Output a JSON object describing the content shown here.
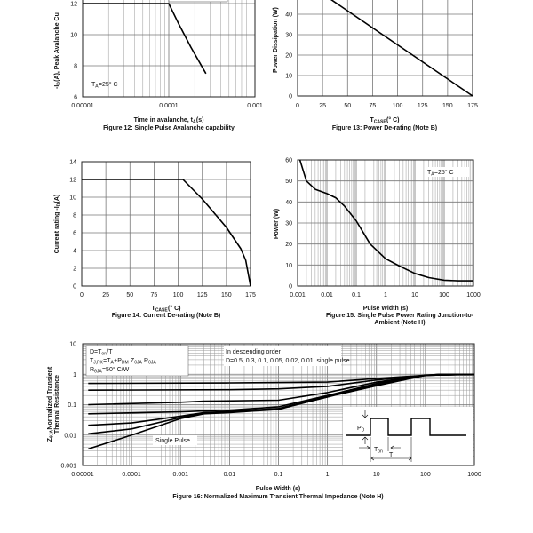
{
  "chart_data": [
    {
      "id": "fig12",
      "type": "line",
      "title": "Figure 12: Single Pulse Avalanche capability",
      "xlabel": [
        {
          "t": "Time in avalanche, t"
        },
        {
          "t": "A",
          "sub": true
        },
        {
          "t": " (s)"
        }
      ],
      "ylabel": [
        {
          "t": "-I"
        },
        {
          "t": "D",
          "sub": true
        },
        {
          "t": "(A), Peak Avalanche Cu"
        }
      ],
      "xscale": "log",
      "xlim": [
        1e-05,
        0.001
      ],
      "ylim": [
        6,
        14
      ],
      "xticks": [
        1e-05,
        0.0001,
        0.001
      ],
      "xticklabels": [
        "0.00001",
        "0.0001",
        "0.001"
      ],
      "yticks": [
        6,
        8,
        10,
        12
      ],
      "yticklabels": [
        "6",
        "8",
        "10",
        "12"
      ],
      "grid": true,
      "annotations": [
        [
          {
            "t": "T"
          },
          {
            "t": "A",
            "sub": true
          },
          {
            "t": "=25° C"
          }
        ]
      ],
      "series": [
        {
          "x": [
            1e-05,
            0.0001,
            0.00013,
            0.00018,
            0.00027
          ],
          "y": [
            12,
            12,
            10.7,
            9.2,
            7.5
          ]
        }
      ]
    },
    {
      "id": "fig13",
      "type": "line",
      "title": "Figure 13: Power De-rating (Note B)",
      "xlabel": [
        {
          "t": "T"
        },
        {
          "t": "CASE",
          "sub": true
        },
        {
          "t": " (° C)"
        }
      ],
      "ylabel": [
        {
          "t": "Power Dissipation (W)"
        }
      ],
      "xscale": "linear",
      "xlim": [
        0,
        175
      ],
      "ylim": [
        0,
        60
      ],
      "xticks": [
        0,
        25,
        50,
        75,
        100,
        125,
        150,
        175
      ],
      "xticklabels": [
        "0",
        "25",
        "50",
        "75",
        "100",
        "125",
        "150",
        "175"
      ],
      "yticks": [
        0,
        10,
        20,
        30,
        40
      ],
      "yticklabels": [
        "0",
        "10",
        "20",
        "30",
        "40"
      ],
      "grid": true,
      "annotations": [],
      "series": [
        {
          "x": [
            25,
            175
          ],
          "y": [
            50,
            0
          ]
        }
      ]
    },
    {
      "id": "fig14",
      "type": "line",
      "title": "Figure 14: Current De-rating (Note B)",
      "xlabel": [
        {
          "t": "T"
        },
        {
          "t": "CASE",
          "sub": true
        },
        {
          "t": " (° C)"
        }
      ],
      "ylabel": [
        {
          "t": "Current rating -I"
        },
        {
          "t": "D",
          "sub": true
        },
        {
          "t": "(A)"
        }
      ],
      "xscale": "linear",
      "xlim": [
        0,
        175
      ],
      "ylim": [
        0,
        14
      ],
      "xticks": [
        0,
        25,
        50,
        75,
        100,
        125,
        150,
        175
      ],
      "xticklabels": [
        "0",
        "25",
        "50",
        "75",
        "100",
        "125",
        "150",
        "175"
      ],
      "yticks": [
        0,
        2,
        4,
        6,
        8,
        10,
        12,
        14
      ],
      "yticklabels": [
        "0",
        "2",
        "4",
        "6",
        "8",
        "10",
        "12",
        "14"
      ],
      "grid": true,
      "annotations": [],
      "series": [
        {
          "x": [
            0,
            105,
            125,
            150,
            160,
            165,
            170,
            175
          ],
          "y": [
            12,
            12,
            9.8,
            6.6,
            5,
            4.2,
            2.9,
            0
          ]
        }
      ]
    },
    {
      "id": "fig15",
      "type": "line",
      "title": "Figure 15: Single Pulse Power Rating Junction-to-",
      "title2": "Ambient (Note H)",
      "xlabel": [
        {
          "t": "Pulse Width (s)"
        }
      ],
      "ylabel": [
        {
          "t": "Power (W)"
        }
      ],
      "xscale": "log",
      "xlim": [
        0.001,
        1000
      ],
      "ylim": [
        0,
        60
      ],
      "xticks": [
        0.001,
        0.01,
        0.1,
        1,
        10,
        100,
        1000
      ],
      "xticklabels": [
        "0.001",
        "0.01",
        "0.1",
        "1",
        "10",
        "100",
        "1000"
      ],
      "yticks": [
        0,
        10,
        20,
        30,
        40,
        50,
        60
      ],
      "yticklabels": [
        "0",
        "10",
        "20",
        "30",
        "40",
        "50",
        "60"
      ],
      "grid": true,
      "annotations": [
        [
          {
            "t": "T"
          },
          {
            "t": "A",
            "sub": true
          },
          {
            "t": "=25° C"
          }
        ]
      ],
      "series": [
        {
          "x": [
            0.0012,
            0.002,
            0.004,
            0.01,
            0.02,
            0.04,
            0.1,
            0.3,
            1,
            3,
            10,
            30,
            100,
            300,
            1000
          ],
          "y": [
            60,
            50,
            46,
            44,
            42,
            38,
            31,
            20,
            13,
            9.5,
            6,
            4,
            2.8,
            2.5,
            2.5
          ]
        }
      ]
    },
    {
      "id": "fig16",
      "type": "line",
      "title": "Figure 16: Normalized Maximum Transient Thermal Impedance (Note H)",
      "xlabel": [
        {
          "t": "Pulse Width (s)"
        }
      ],
      "ylabel": [
        {
          "t": "Z"
        },
        {
          "t": "θJA",
          "sub": true
        },
        {
          "t": " Normalized Transient"
        }
      ],
      "ylabel2": [
        {
          "t": "Thermal Resistance"
        }
      ],
      "xscale": "log",
      "yscale": "log",
      "xlim": [
        1e-05,
        1000
      ],
      "ylim": [
        0.001,
        10
      ],
      "xticks": [
        1e-05,
        0.0001,
        0.001,
        0.01,
        0.1,
        1,
        10,
        100,
        1000
      ],
      "xticklabels": [
        "0.00001",
        "0.0001",
        "0.001",
        "0.01",
        "0.1",
        "1",
        "10",
        "100",
        "1000"
      ],
      "yticks": [
        0.001,
        0.01,
        0.1,
        1,
        10
      ],
      "yticklabels": [
        "0.001",
        "0.01",
        "0.1",
        "1",
        "10"
      ],
      "grid": true,
      "annotations": [
        [
          {
            "t": "D=T"
          },
          {
            "t": "on",
            "sub": true
          },
          {
            "t": "/T"
          }
        ],
        [
          {
            "t": "T"
          },
          {
            "t": "J,PK",
            "sub": true
          },
          {
            "t": "=T"
          },
          {
            "t": "A",
            "sub": true
          },
          {
            "t": "+P"
          },
          {
            "t": "DM",
            "sub": true
          },
          {
            "t": ".Z"
          },
          {
            "t": "θJA",
            "sub": true
          },
          {
            "t": ".R"
          },
          {
            "t": "θJA",
            "sub": true
          }
        ],
        [
          {
            "t": "R"
          },
          {
            "t": "θJA",
            "sub": true
          },
          {
            "t": "=50° C/W"
          }
        ],
        [
          {
            "t": "In descending order"
          }
        ],
        [
          {
            "t": "D=0.5, 0.3, 0.1, 0.05, 0.02, 0.01, single pulse"
          }
        ],
        [
          {
            "t": "Single Pulse"
          }
        ]
      ],
      "inset_labels": {
        "power": [
          {
            "t": "P"
          },
          {
            "t": "D",
            "sub": true
          }
        ],
        "on_time": [
          {
            "t": "T"
          },
          {
            "t": "on",
            "sub": true
          }
        ],
        "period": [
          {
            "t": "T"
          }
        ]
      },
      "series": [
        {
          "name": "D=0.5",
          "x": [
            1.3e-05,
            0.01,
            1,
            10,
            200,
            1000
          ],
          "y": [
            0.5,
            0.52,
            0.55,
            0.72,
            1,
            1
          ]
        },
        {
          "name": "D=0.3",
          "x": [
            1.3e-05,
            0.01,
            0.1,
            1,
            10,
            200,
            1000
          ],
          "y": [
            0.3,
            0.31,
            0.33,
            0.4,
            0.65,
            1,
            1
          ]
        },
        {
          "name": "D=0.1",
          "x": [
            1.3e-05,
            0.001,
            0.003,
            0.1,
            1,
            10,
            100,
            200,
            1000
          ],
          "y": [
            0.1,
            0.12,
            0.13,
            0.14,
            0.25,
            0.55,
            0.92,
            1,
            1
          ]
        },
        {
          "name": "D=0.05",
          "x": [
            1.3e-05,
            0.001,
            0.003,
            0.01,
            0.1,
            1,
            10,
            100,
            1000
          ],
          "y": [
            0.05,
            0.058,
            0.062,
            0.066,
            0.085,
            0.2,
            0.5,
            0.92,
            1
          ]
        },
        {
          "name": "D=0.02",
          "x": [
            1.3e-05,
            0.0001,
            0.001,
            0.003,
            0.01,
            0.1,
            1,
            10,
            100,
            1000
          ],
          "y": [
            0.021,
            0.025,
            0.042,
            0.055,
            0.06,
            0.075,
            0.19,
            0.45,
            0.92,
            1
          ]
        },
        {
          "name": "D=0.01",
          "x": [
            1.3e-05,
            0.0001,
            0.001,
            0.003,
            0.01,
            0.1,
            1,
            10,
            100,
            1000
          ],
          "y": [
            0.011,
            0.016,
            0.038,
            0.052,
            0.057,
            0.072,
            0.18,
            0.42,
            0.92,
            1
          ]
        },
        {
          "name": "single pulse",
          "x": [
            1.3e-05,
            0.0001,
            0.001,
            0.003,
            0.01,
            0.1,
            0.3,
            1,
            3,
            10,
            100,
            1000
          ],
          "y": [
            0.0035,
            0.01,
            0.035,
            0.05,
            0.055,
            0.07,
            0.11,
            0.18,
            0.3,
            0.45,
            0.92,
            1
          ]
        }
      ]
    }
  ]
}
